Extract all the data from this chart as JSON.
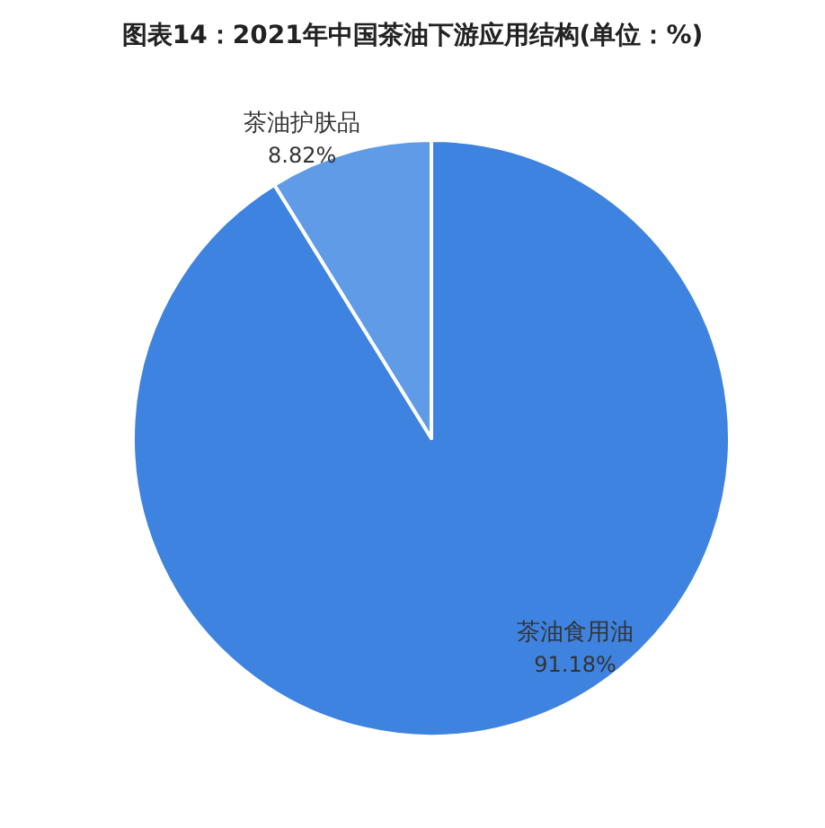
{
  "chart_data": {
    "type": "pie",
    "title": "图表14：2021年中国茶油下游应用结构(单位：%)",
    "categories": [
      "茶油食用油",
      "茶油护肤品"
    ],
    "values": [
      91.18,
      8.82
    ],
    "colors": [
      "#3f83e0",
      "#5f9be6"
    ],
    "value_labels": [
      "91.18%",
      "8.82%"
    ]
  }
}
